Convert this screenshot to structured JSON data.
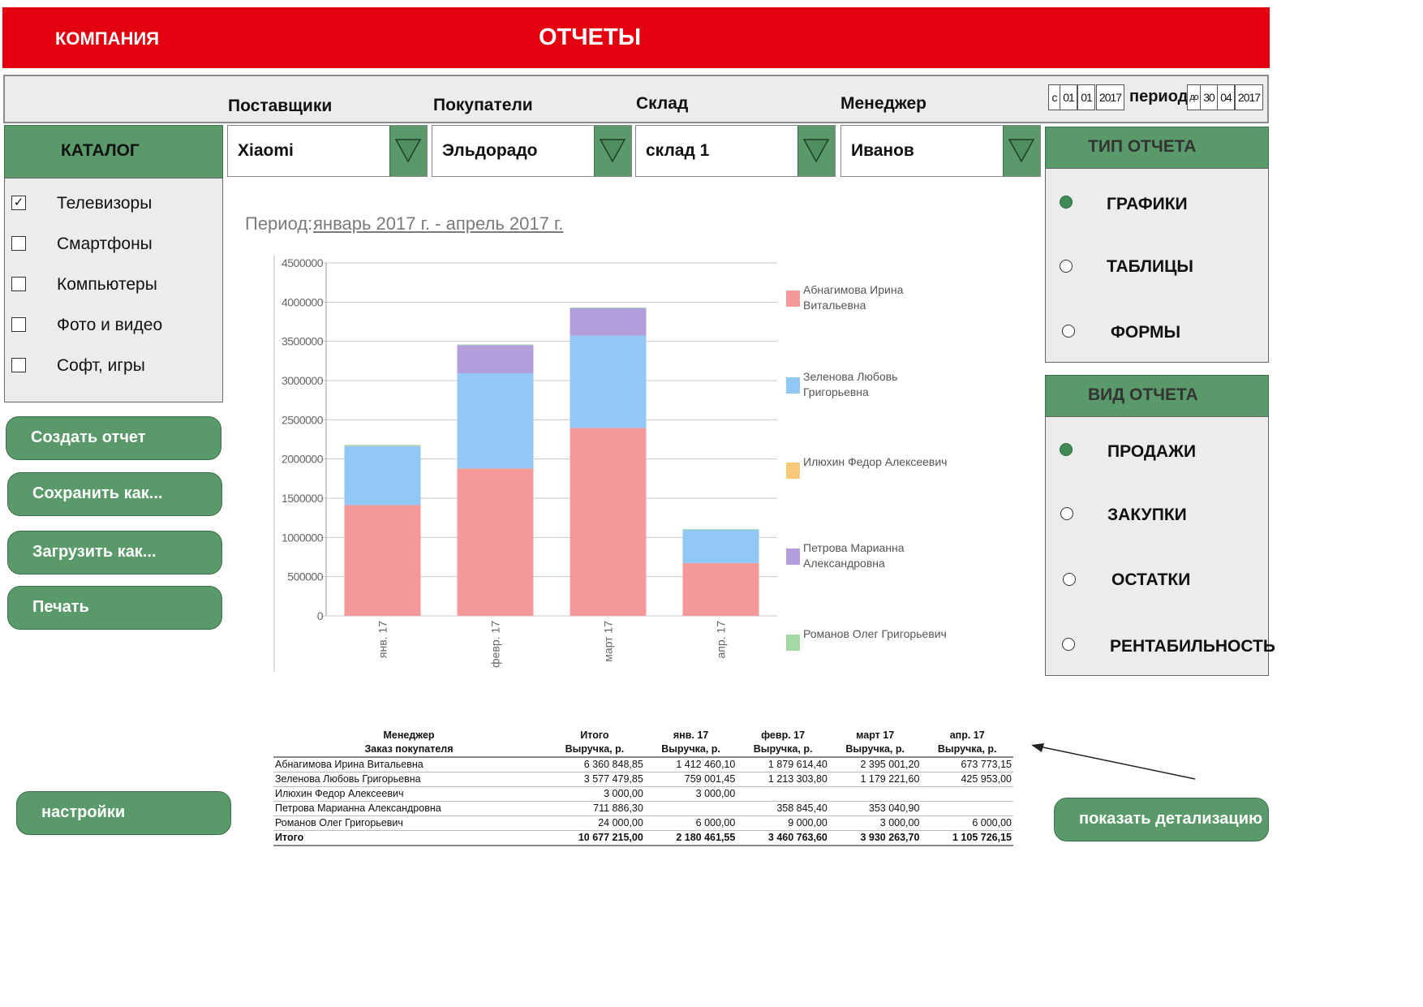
{
  "header": {
    "company": "КОМПАНИЯ",
    "title": "ОТЧЕТЫ",
    "color": "#e3000f"
  },
  "filters": {
    "labels": {
      "suppliers": "Поставщики",
      "buyers": "Покупатели",
      "warehouse": "Склад",
      "manager": "Менеджер"
    },
    "values": {
      "suppliers": "Xiaomi",
      "buyers": "Эльдорадо",
      "warehouse": "склад 1",
      "manager": "Иванов"
    }
  },
  "date_range": {
    "from_prefix": "с",
    "from_day": "01",
    "from_month": "01",
    "from_year": "2017",
    "period_label": "период",
    "to_prefix": "до",
    "to_day": "30",
    "to_month": "04",
    "to_year": "2017"
  },
  "catalog": {
    "title": "КАТАЛОГ",
    "items": [
      {
        "label": "Телевизоры",
        "checked": true,
        "mark": "✓"
      },
      {
        "label": "Смартфоны",
        "checked": false
      },
      {
        "label": "Компьютеры",
        "checked": false
      },
      {
        "label": "Фото и видео",
        "checked": false
      },
      {
        "label": "Софт, игры",
        "checked": false
      }
    ]
  },
  "actions": {
    "create": "Создать отчет",
    "save": "Сохранить как...",
    "load": "Загрузить как...",
    "print": "Печать",
    "settings": "настройки",
    "details": "показать детализацию"
  },
  "report_type": {
    "title": "ТИП ОТЧЕТА",
    "options": [
      {
        "label": "ГРАФИКИ",
        "selected": true
      },
      {
        "label": "ТАБЛИЦЫ",
        "selected": false
      },
      {
        "label": "ФОРМЫ",
        "selected": false
      }
    ]
  },
  "report_view": {
    "title": "ВИД ОТЧЕТА",
    "options": [
      {
        "label": "ПРОДАЖИ",
        "selected": true
      },
      {
        "label": "ЗАКУПКИ",
        "selected": false
      },
      {
        "label": "ОСТАТКИ",
        "selected": false
      },
      {
        "label": "РЕНТАБИЛЬНОСТЬ",
        "selected": false
      }
    ]
  },
  "period": {
    "label": "Период:",
    "value": "январь 2017 г. - апрель 2017 г."
  },
  "chart_data": {
    "type": "bar",
    "stacked": true,
    "categories": [
      "янв. 17",
      "февр. 17",
      "март 17",
      "апр. 17"
    ],
    "ylim": [
      0,
      4500000
    ],
    "yticks": [
      0,
      500000,
      1000000,
      1500000,
      2000000,
      2500000,
      3000000,
      3500000,
      4000000,
      4500000
    ],
    "ytick_labels": [
      "0",
      "500000",
      "1000000",
      "1500000",
      "2000000",
      "2500000",
      "3000000",
      "3500000",
      "4000000",
      "4500000"
    ],
    "grid": true,
    "legend_position": "right",
    "series": [
      {
        "name": "Абнагимова Ирина Витальевна",
        "legend_lines": [
          "Абнагимова Ирина",
          "Витальевна"
        ],
        "color": "#f4999a",
        "values": [
          1412460.1,
          1879614.4,
          2395001.2,
          673773.15
        ]
      },
      {
        "name": "Зеленова Любовь Григорьевна",
        "legend_lines": [
          "Зеленова Любовь",
          "Григорьевна"
        ],
        "color": "#92c8f6",
        "values": [
          759001.45,
          1213303.8,
          1179221.6,
          425953.0
        ]
      },
      {
        "name": "Илюхин Федор Алексеевич",
        "legend_lines": [
          "Илюхин Федор Алексеевич"
        ],
        "color": "#fbc97a",
        "values": [
          3000.0,
          0,
          0,
          0
        ]
      },
      {
        "name": "Петрова Марианна Александровна",
        "legend_lines": [
          "Петрова Марианна",
          "Александровна"
        ],
        "color": "#b39ddb",
        "values": [
          0,
          358845.4,
          353040.9,
          0
        ]
      },
      {
        "name": "Романов Олег Григорьевич",
        "legend_lines": [
          "Романов Олег Григорьевич"
        ],
        "color": "#a3d9a5",
        "values": [
          6000.0,
          9000.0,
          3000.0,
          6000.0
        ]
      }
    ]
  },
  "table": {
    "header1": [
      "Менеджер",
      "Итого",
      "янв. 17",
      "февр. 17",
      "март 17",
      "апр. 17"
    ],
    "header2": [
      "Заказ покупателя",
      "Выручка, р.",
      "Выручка, р.",
      "Выручка, р.",
      "Выручка, р.",
      "Выручка, р."
    ],
    "rows": [
      [
        "Абнагимова Ирина Витальевна",
        "6 360 848,85",
        "1 412 460,10",
        "1 879 614,40",
        "2 395 001,20",
        "673 773,15"
      ],
      [
        "Зеленова Любовь Григорьевна",
        "3 577 479,85",
        "759 001,45",
        "1 213 303,80",
        "1 179 221,60",
        "425 953,00"
      ],
      [
        "Илюхин Федор Алексеевич",
        "3 000,00",
        "3 000,00",
        "",
        "",
        ""
      ],
      [
        "Петрова Марианна Александровна",
        "711 886,30",
        "",
        "358 845,40",
        "353 040,90",
        ""
      ],
      [
        "Романов Олег Григорьевич",
        "24 000,00",
        "6 000,00",
        "9 000,00",
        "3 000,00",
        "6 000,00"
      ]
    ],
    "total": [
      "Итого",
      "10 677 215,00",
      "2 180 461,55",
      "3 460 763,60",
      "3 930 263,70",
      "1 105 726,15"
    ]
  },
  "icons": {
    "dropdown": "triangle-down-icon",
    "arrow": "arrow-pointer-icon"
  },
  "colors": {
    "green": "#5a9a6a",
    "panel": "#ececec"
  }
}
